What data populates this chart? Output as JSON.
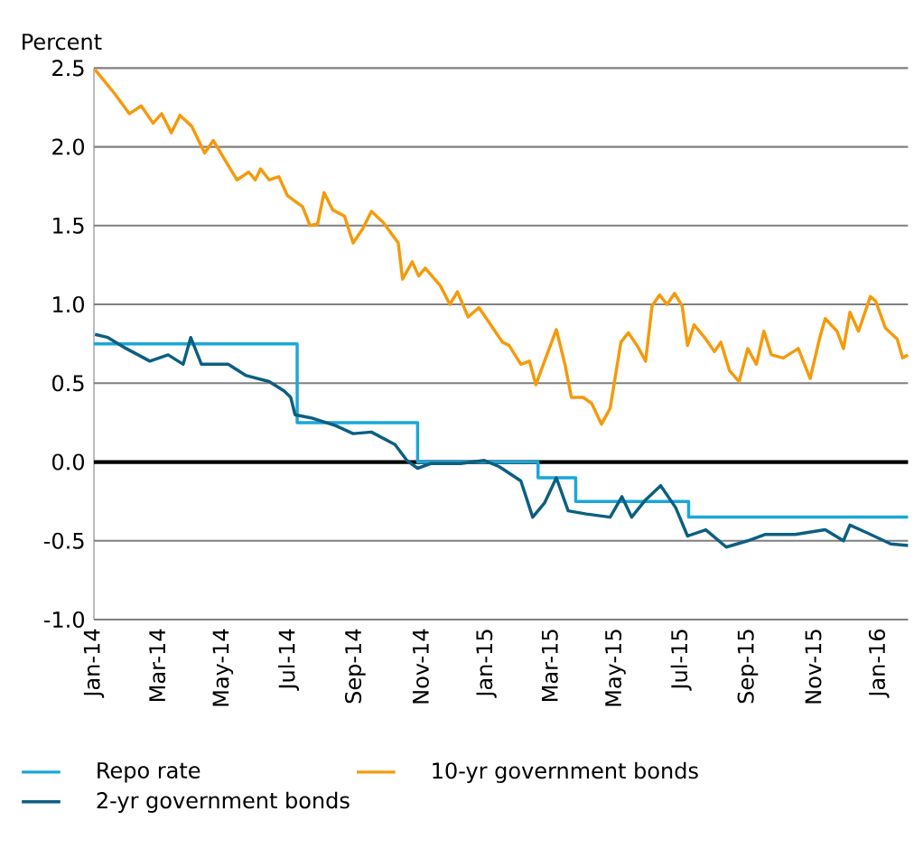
{
  "chart_data": {
    "type": "line",
    "ylabel": "Percent",
    "xlim": [
      "2014-01-01",
      "2016-01-28"
    ],
    "xticks": [
      {
        "value": "2014-01-01",
        "label": "Jan-14"
      },
      {
        "value": "2014-03-01",
        "label": "Mar-14"
      },
      {
        "value": "2014-05-01",
        "label": "May-14"
      },
      {
        "value": "2014-07-01",
        "label": "Jul-14"
      },
      {
        "value": "2014-09-01",
        "label": "Sep-14"
      },
      {
        "value": "2014-11-01",
        "label": "Nov-14"
      },
      {
        "value": "2015-01-01",
        "label": "Jan-15"
      },
      {
        "value": "2015-03-01",
        "label": "Mar-15"
      },
      {
        "value": "2015-05-01",
        "label": "May-15"
      },
      {
        "value": "2015-07-01",
        "label": "Jul-15"
      },
      {
        "value": "2015-09-01",
        "label": "Sep-15"
      },
      {
        "value": "2015-11-01",
        "label": "Nov-15"
      },
      {
        "value": "2016-01-01",
        "label": "Jan-16"
      }
    ],
    "ylim": [
      -1.0,
      2.5
    ],
    "yticks": [
      {
        "value": -1.0,
        "label": "-1.0"
      },
      {
        "value": -0.5,
        "label": "-0.5"
      },
      {
        "value": 0,
        "label": "0.0"
      },
      {
        "value": 0.5,
        "label": "0.5"
      },
      {
        "value": 1.0,
        "label": "1.0"
      },
      {
        "value": 1.5,
        "label": "1.5"
      },
      {
        "value": 2.0,
        "label": "2.0"
      },
      {
        "value": 2.5,
        "label": "2.5"
      }
    ],
    "grid": "y",
    "legend": "bottom",
    "ref_lines": [
      {
        "axis": "y",
        "value": 0,
        "color": "#000000"
      }
    ],
    "series": [
      {
        "name": "Repo rate",
        "type": "step",
        "color": "#1aa7d8",
        "x": [
          "2014-01-01",
          "2014-07-09",
          "2014-10-29",
          "2015-02-18",
          "2015-03-25",
          "2015-07-08",
          "2016-01-28"
        ],
        "values": [
          0.75,
          0.25,
          0,
          -0.1,
          -0.25,
          -0.35,
          -0.35
        ]
      },
      {
        "name": "10-yr government bonds",
        "color": "#f59a0c",
        "x": [
          "2014-01-02",
          "2014-01-20",
          "2014-02-03",
          "2014-02-14",
          "2014-02-25",
          "2014-03-05",
          "2014-03-14",
          "2014-03-22",
          "2014-04-02",
          "2014-04-14",
          "2014-04-22",
          "2014-05-14",
          "2014-05-25",
          "2014-05-31",
          "2014-06-05",
          "2014-06-13",
          "2014-06-22",
          "2014-06-30",
          "2014-07-14",
          "2014-07-21",
          "2014-07-28",
          "2014-08-03",
          "2014-08-11",
          "2014-08-22",
          "2014-08-30",
          "2014-09-08",
          "2014-09-16",
          "2014-09-27",
          "2014-10-11",
          "2014-10-15",
          "2014-10-24",
          "2014-10-30",
          "2014-11-05",
          "2014-11-19",
          "2014-11-28",
          "2014-12-05",
          "2014-12-15",
          "2014-12-25",
          "2014-12-30",
          "2015-01-05",
          "2015-01-16",
          "2015-01-22",
          "2015-02-02",
          "2015-02-10",
          "2015-02-16",
          "2015-02-24",
          "2015-03-07",
          "2015-03-15",
          "2015-03-21",
          "2015-04-01",
          "2015-04-09",
          "2015-04-18",
          "2015-04-26",
          "2015-05-06",
          "2015-05-13",
          "2015-05-21",
          "2015-05-29",
          "2015-06-04",
          "2015-06-11",
          "2015-06-18",
          "2015-06-25",
          "2015-07-02",
          "2015-07-07",
          "2015-07-13",
          "2015-07-24",
          "2015-08-01",
          "2015-08-07",
          "2015-08-15",
          "2015-08-24",
          "2015-09-01",
          "2015-09-09",
          "2015-09-16",
          "2015-09-23",
          "2015-10-04",
          "2015-10-18",
          "2015-10-29",
          "2015-11-07",
          "2015-11-12",
          "2015-11-23",
          "2015-11-29",
          "2015-12-05",
          "2015-12-13",
          "2015-12-24",
          "2015-12-29",
          "2016-01-07",
          "2016-01-18",
          "2016-01-23",
          "2016-01-28"
        ],
        "values": [
          2.49,
          2.34,
          2.21,
          2.26,
          2.15,
          2.21,
          2.09,
          2.2,
          2.13,
          1.96,
          2.04,
          1.79,
          1.84,
          1.79,
          1.86,
          1.79,
          1.81,
          1.69,
          1.62,
          1.5,
          1.51,
          1.71,
          1.6,
          1.56,
          1.39,
          1.48,
          1.59,
          1.52,
          1.39,
          1.16,
          1.27,
          1.18,
          1.23,
          1.12,
          1.0,
          1.08,
          0.92,
          0.98,
          0.93,
          0.87,
          0.76,
          0.74,
          0.62,
          0.64,
          0.49,
          0.64,
          0.84,
          0.62,
          0.41,
          0.41,
          0.37,
          0.24,
          0.34,
          0.76,
          0.82,
          0.74,
          0.64,
          0.99,
          1.06,
          1.0,
          1.07,
          0.99,
          0.74,
          0.87,
          0.78,
          0.7,
          0.76,
          0.58,
          0.51,
          0.72,
          0.62,
          0.83,
          0.68,
          0.66,
          0.72,
          0.53,
          0.79,
          0.91,
          0.83,
          0.72,
          0.95,
          0.83,
          1.05,
          1.02,
          0.85,
          0.78,
          0.66,
          0.68
        ]
      },
      {
        "name": "2-yr government bonds",
        "color": "#0c5f82",
        "x": [
          "2014-01-02",
          "2014-01-14",
          "2014-01-31",
          "2014-02-22",
          "2014-03-11",
          "2014-03-25",
          "2014-04-01",
          "2014-04-11",
          "2014-05-06",
          "2014-05-22",
          "2014-06-13",
          "2014-06-27",
          "2014-07-03",
          "2014-07-07",
          "2014-07-22",
          "2014-08-14",
          "2014-08-30",
          "2014-09-16",
          "2014-10-08",
          "2014-10-19",
          "2014-10-29",
          "2014-11-10",
          "2014-12-08",
          "2014-12-30",
          "2015-01-13",
          "2015-02-02",
          "2015-02-13",
          "2015-02-24",
          "2015-03-07",
          "2015-03-18",
          "2015-04-04",
          "2015-04-26",
          "2015-05-07",
          "2015-05-16",
          "2015-05-29",
          "2015-06-12",
          "2015-06-26",
          "2015-07-07",
          "2015-07-24",
          "2015-08-12",
          "2015-09-01",
          "2015-09-17",
          "2015-10-15",
          "2015-11-12",
          "2015-11-29",
          "2015-12-05",
          "2015-12-21",
          "2016-01-12",
          "2016-01-28"
        ],
        "values": [
          0.81,
          0.79,
          0.72,
          0.64,
          0.68,
          0.62,
          0.79,
          0.62,
          0.62,
          0.55,
          0.51,
          0.45,
          0.41,
          0.3,
          0.28,
          0.23,
          0.18,
          0.19,
          0.11,
          0.01,
          -0.04,
          -0.01,
          -0.01,
          0.01,
          -0.03,
          -0.12,
          -0.35,
          -0.26,
          -0.1,
          -0.31,
          -0.33,
          -0.35,
          -0.22,
          -0.35,
          -0.24,
          -0.15,
          -0.29,
          -0.47,
          -0.43,
          -0.54,
          -0.5,
          -0.46,
          -0.46,
          -0.43,
          -0.5,
          -0.4,
          -0.45,
          -0.52,
          -0.53
        ]
      }
    ]
  }
}
